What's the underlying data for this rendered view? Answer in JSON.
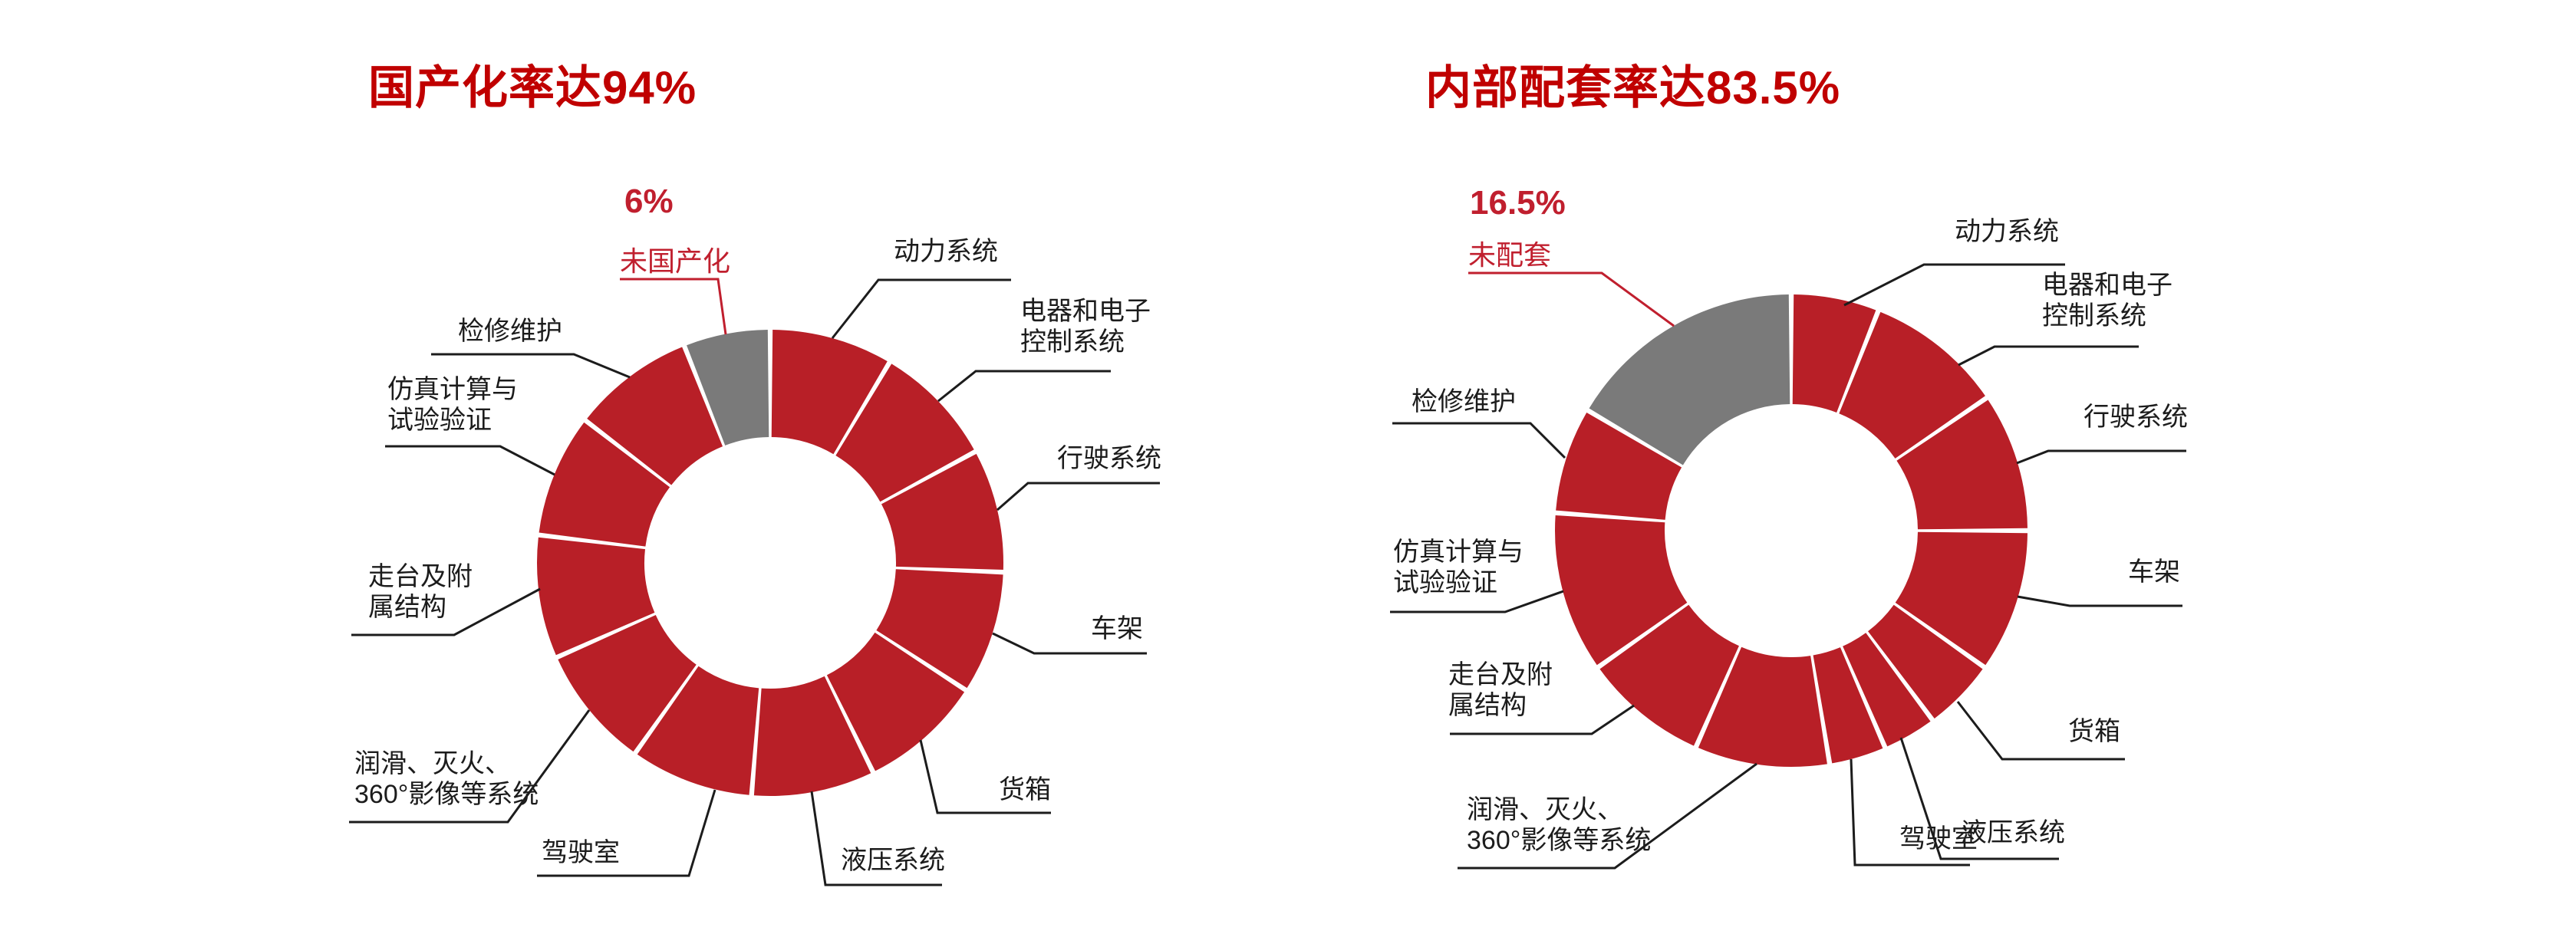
{
  "ui": {
    "colors": {
      "slice_red": "#b81f27",
      "slice_gray": "#7a7a7a",
      "title_red": "#c00000",
      "callout_red": "#c01f2e",
      "label_black": "#1c1c1c"
    },
    "charts": [
      {
        "title": "国产化率达94%",
        "callout": {
          "value": "6%",
          "label": "未国产化"
        },
        "labels": {
          "power": "动力系统",
          "electric": "电器和电子\n控制系统",
          "travel": "行驶系统",
          "frame": "车架",
          "cargo": "货箱",
          "hydraulic": "液压系统",
          "cab": "驾驶室",
          "lubrication": "润滑、灭火、\n360°影像等系统",
          "walkway": "走台及附\n属结构",
          "simulation": "仿真计算与\n试验验证",
          "maintenance": "检修维护"
        }
      },
      {
        "title": "内部配套率达83.5%",
        "callout": {
          "value": "16.5%",
          "label": "未配套"
        },
        "labels": {
          "power": "动力系统",
          "electric": "电器和电子\n控制系统",
          "travel": "行驶系统",
          "frame": "车架",
          "cargo": "货箱",
          "hydraulic": "液压系统",
          "cab": "驾驶室",
          "lubrication": "润滑、灭火、\n360°影像等系统",
          "walkway": "走台及附\n属结构",
          "simulation": "仿真计算与\n试验验证",
          "maintenance": "检修维护"
        }
      }
    ]
  },
  "chart_data": [
    {
      "type": "pie",
      "subtype": "donut",
      "title": "国产化率达94%",
      "units": "percent",
      "total": 100,
      "highlighted_total_label": "国产化率 94%",
      "start_angle_deg": 0,
      "direction": "clockwise",
      "segments": [
        {
          "label": "动力系统",
          "value": 8.545
        },
        {
          "label": "电器和电子控制系统",
          "value": 8.545
        },
        {
          "label": "行驶系统",
          "value": 8.545
        },
        {
          "label": "车架",
          "value": 8.545
        },
        {
          "label": "货箱",
          "value": 8.545
        },
        {
          "label": "液压系统",
          "value": 8.545
        },
        {
          "label": "驾驶室",
          "value": 8.545
        },
        {
          "label": "润滑、灭火、360°影像等系统",
          "value": 8.545
        },
        {
          "label": "走台及附属结构",
          "value": 8.545
        },
        {
          "label": "仿真计算与试验验证",
          "value": 8.545
        },
        {
          "label": "检修维护",
          "value": 8.545
        },
        {
          "label": "未国产化",
          "value": 6,
          "color": "#7a7a7a"
        }
      ]
    },
    {
      "type": "pie",
      "subtype": "donut",
      "title": "内部配套率达83.5%",
      "units": "percent",
      "total": 100,
      "highlighted_total_label": "内部配套率 83.5%",
      "start_angle_deg": 0,
      "direction": "clockwise",
      "segments": [
        {
          "label": "动力系统",
          "value": 6
        },
        {
          "label": "电器和电子控制系统",
          "value": 9.5
        },
        {
          "label": "行驶系统",
          "value": 9.5
        },
        {
          "label": "车架",
          "value": 9.8
        },
        {
          "label": "货箱",
          "value": 5.0
        },
        {
          "label": "液压系统",
          "value": 3.7
        },
        {
          "label": "驾驶室",
          "value": 3.9
        },
        {
          "label": "润滑、灭火、360°影像等系统",
          "value": 9.2
        },
        {
          "label": "走台及附属结构",
          "value": 8.6
        },
        {
          "label": "仿真计算与试验验证",
          "value": 11
        },
        {
          "label": "检修维护",
          "value": 7.3
        },
        {
          "label": "未配套",
          "value": 16.5,
          "color": "#7a7a7a"
        }
      ]
    }
  ]
}
